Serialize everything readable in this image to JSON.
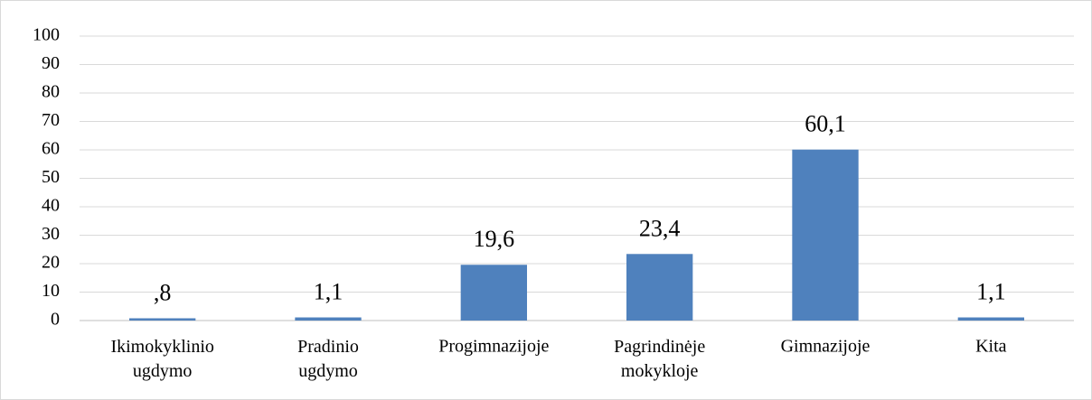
{
  "chart_data": {
    "type": "bar",
    "categories": [
      "Ikimokyklinio ugdymo",
      "Pradinio ugdymo",
      "Progimnazijoje",
      "Pagrindinėje mokykloje",
      "Gimnazijoje",
      "Kita"
    ],
    "values": [
      0.8,
      1.1,
      19.6,
      23.4,
      60.1,
      1.1
    ],
    "value_labels": [
      ",8",
      "1,1",
      "19,6",
      "23,4",
      "60,1",
      "1,1"
    ],
    "color": "#4f81bd",
    "ylim": [
      0,
      100
    ],
    "yticks": [
      0,
      10,
      20,
      30,
      40,
      50,
      60,
      70,
      80,
      90,
      100
    ],
    "grid": true
  }
}
